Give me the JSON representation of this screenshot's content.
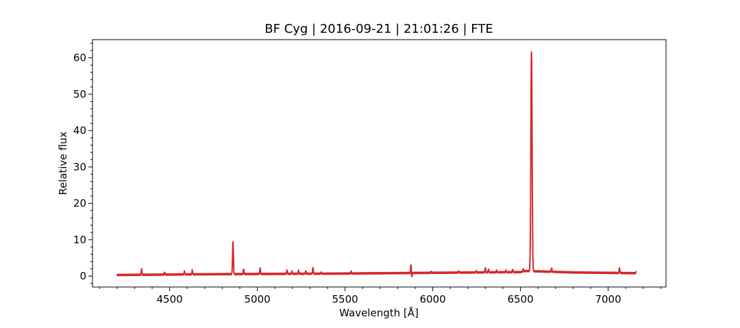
{
  "chart_data": {
    "type": "line",
    "title": "BF Cyg | 2016-09-21 | 21:01:26 | FTE",
    "xlabel": "Wavelength [Å]",
    "ylabel": "Relative flux",
    "xlim": [
      4060,
      7330
    ],
    "ylim": [
      -3,
      65
    ],
    "xticks": [
      4500,
      5000,
      5500,
      6000,
      6500,
      7000
    ],
    "yticks": [
      0,
      10,
      20,
      30,
      40,
      50,
      60
    ],
    "grid": false,
    "series": [
      {
        "color": "#d62728",
        "continuum": [
          [
            4200,
            0.3
          ],
          [
            4700,
            0.5
          ],
          [
            5500,
            0.7
          ],
          [
            6000,
            0.9
          ],
          [
            6500,
            1.1
          ],
          [
            6530,
            1.4
          ],
          [
            6600,
            1.3
          ],
          [
            6800,
            1.0
          ],
          [
            7160,
            0.8
          ]
        ],
        "emission_lines": [
          {
            "x": 4340,
            "peak": 1.9,
            "width": 2
          },
          {
            "x": 4471,
            "peak": 1.0,
            "width": 2
          },
          {
            "x": 4584,
            "peak": 1.3,
            "width": 2
          },
          {
            "x": 4629,
            "peak": 1.6,
            "width": 2
          },
          {
            "x": 4861,
            "peak": 9.3,
            "width": 2.5
          },
          {
            "x": 4922,
            "peak": 1.9,
            "width": 2
          },
          {
            "x": 5016,
            "peak": 2.2,
            "width": 2
          },
          {
            "x": 5169,
            "peak": 1.6,
            "width": 2
          },
          {
            "x": 5197,
            "peak": 1.3,
            "width": 2
          },
          {
            "x": 5235,
            "peak": 1.5,
            "width": 2
          },
          {
            "x": 5276,
            "peak": 1.4,
            "width": 2
          },
          {
            "x": 5317,
            "peak": 2.3,
            "width": 2
          },
          {
            "x": 5363,
            "peak": 1.0,
            "width": 2
          },
          {
            "x": 5535,
            "peak": 1.3,
            "width": 2
          },
          {
            "x": 5876,
            "peak": 3.3,
            "width": 2
          },
          {
            "x": 5991,
            "peak": 1.2,
            "width": 2
          },
          {
            "x": 6148,
            "peak": 1.3,
            "width": 2
          },
          {
            "x": 6248,
            "peak": 1.4,
            "width": 2
          },
          {
            "x": 6300,
            "peak": 2.2,
            "width": 2
          },
          {
            "x": 6318,
            "peak": 1.8,
            "width": 2
          },
          {
            "x": 6364,
            "peak": 1.6,
            "width": 2
          },
          {
            "x": 6417,
            "peak": 1.5,
            "width": 2
          },
          {
            "x": 6456,
            "peak": 1.8,
            "width": 2
          },
          {
            "x": 6516,
            "peak": 1.9,
            "width": 2
          },
          {
            "x": 6563,
            "peak": 61.8,
            "width": 3.5
          },
          {
            "x": 6678,
            "peak": 2.2,
            "width": 2
          },
          {
            "x": 7065,
            "peak": 2.2,
            "width": 2
          },
          {
            "x": 7160,
            "peak": 1.2,
            "width": 2
          }
        ],
        "absorption_lines": [
          {
            "x": 5880,
            "depth": -0.4,
            "width": 2
          }
        ],
        "x_range": [
          4200,
          7160
        ]
      }
    ]
  }
}
